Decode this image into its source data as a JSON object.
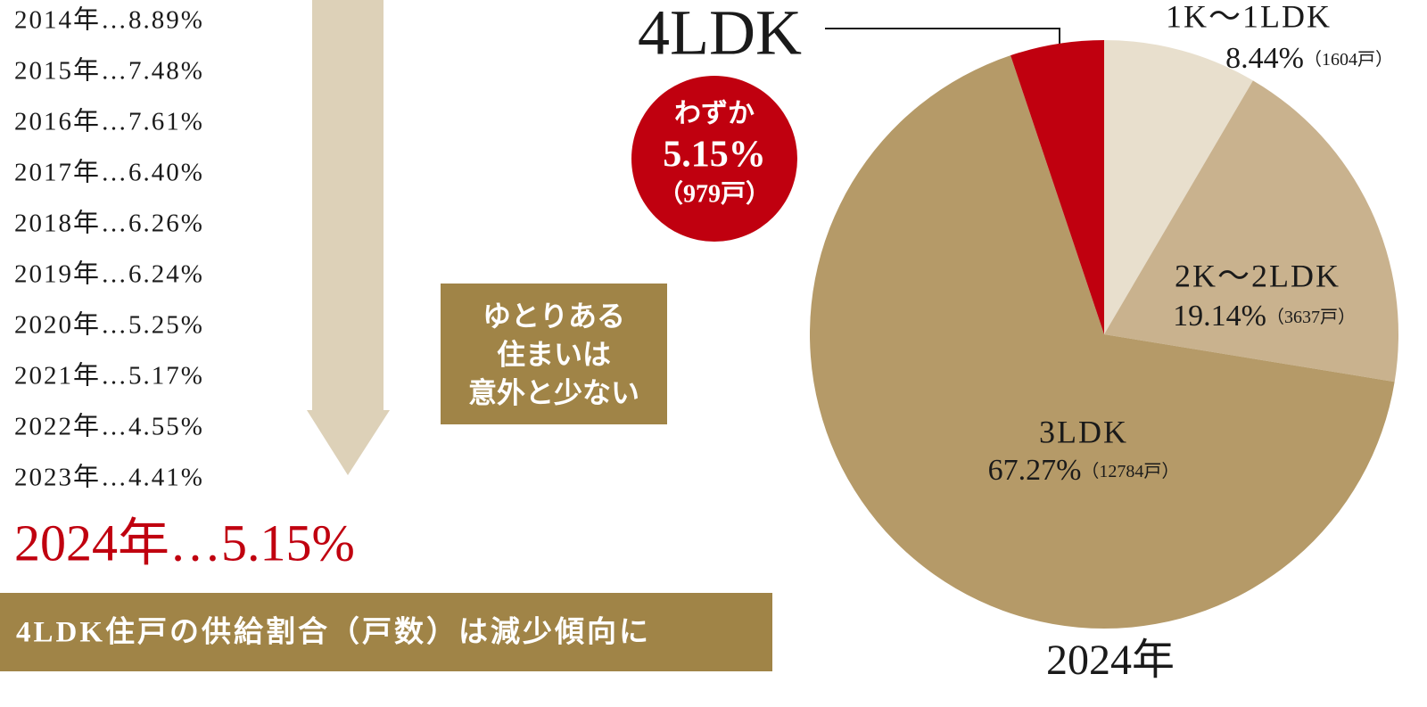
{
  "chart_data": {
    "type": "pie",
    "categories": [
      "1K〜1LDK",
      "2K〜2LDK",
      "3LDK",
      "4LDK"
    ],
    "values": [
      8.44,
      19.14,
      67.27,
      5.15
    ],
    "value_labels": [
      "8.44%",
      "19.14%",
      "67.27%",
      "5.15%"
    ],
    "count_labels": [
      "（1604戸）",
      "（3637戸）",
      "（12784戸）",
      "（979戸）"
    ],
    "colors": [
      "#e8dfcd",
      "#c9b28e",
      "#b59a68",
      "#c0000f"
    ],
    "caption": "2024年",
    "callout": "わずか"
  },
  "trend": {
    "rows": [
      "2014年…8.89%",
      "2015年…7.48%",
      "2016年…7.61%",
      "2017年…6.40%",
      "2018年…6.26%",
      "2019年…6.24%",
      "2020年…5.25%",
      "2021年…5.17%",
      "2022年…4.55%",
      "2023年…4.41%"
    ],
    "latest": "2024年…5.15%",
    "note_lines": [
      "ゆとりある",
      "住まいは",
      "意外と少ない"
    ],
    "banner": "4LDK住戸の供給割合（戸数）は減少傾向に"
  }
}
